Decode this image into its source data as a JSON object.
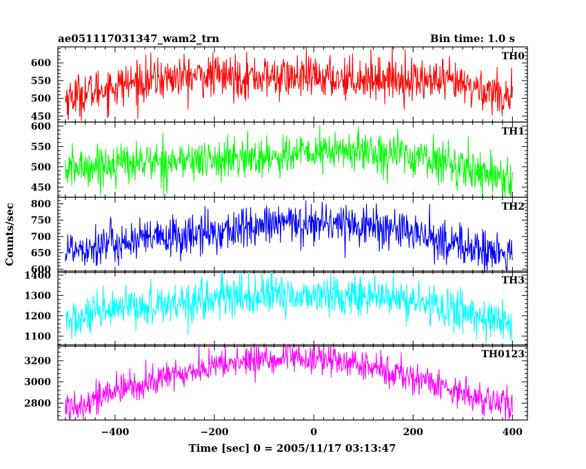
{
  "chart_data": {
    "type": "line",
    "title_left": "ae051117031347_wam2_trn",
    "title_right": "Bin time: 1.0 s",
    "xlabel": "Time [sec] 0 = 2005/11/17 03:13:47",
    "ylabel": "Counts/sec",
    "xlim": [
      -515,
      430
    ],
    "x_ticks": [
      -400,
      -200,
      0,
      200,
      400
    ],
    "x_range": [
      -500,
      400
    ],
    "panels": [
      {
        "name": "TH0",
        "color": "#ff0000",
        "ylim": [
          433,
          645
        ],
        "y_ticks": [
          450,
          500,
          550,
          600
        ],
        "center": 500,
        "amplitude": 70,
        "noise": 30,
        "phase": 0.0
      },
      {
        "name": "TH1",
        "color": "#00ff00",
        "ylim": [
          425,
          610
        ],
        "y_ticks": [
          450,
          500,
          550,
          600
        ],
        "center": 480,
        "amplitude": 55,
        "noise": 25,
        "phase": 1.3
      },
      {
        "name": "TH2",
        "color": "#0000ff",
        "ylim": [
          590,
          820
        ],
        "y_ticks": [
          600,
          650,
          700,
          750,
          800
        ],
        "center": 650,
        "amplitude": 85,
        "noise": 32,
        "phase": 2.1
      },
      {
        "name": "TH3",
        "color": "#00ffff",
        "ylim": [
          1050,
          1420
        ],
        "y_ticks": [
          1100,
          1200,
          1300,
          1400
        ],
        "center": 1160,
        "amplitude": 150,
        "noise": 50,
        "phase": 0.7
      },
      {
        "name": "TH0123",
        "color": "#ff00ff",
        "ylim": [
          2640,
          3350
        ],
        "y_ticks": [
          2800,
          3000,
          3200
        ],
        "center": 2760,
        "amplitude": 450,
        "noise": 75,
        "phase": 3.2
      }
    ]
  }
}
